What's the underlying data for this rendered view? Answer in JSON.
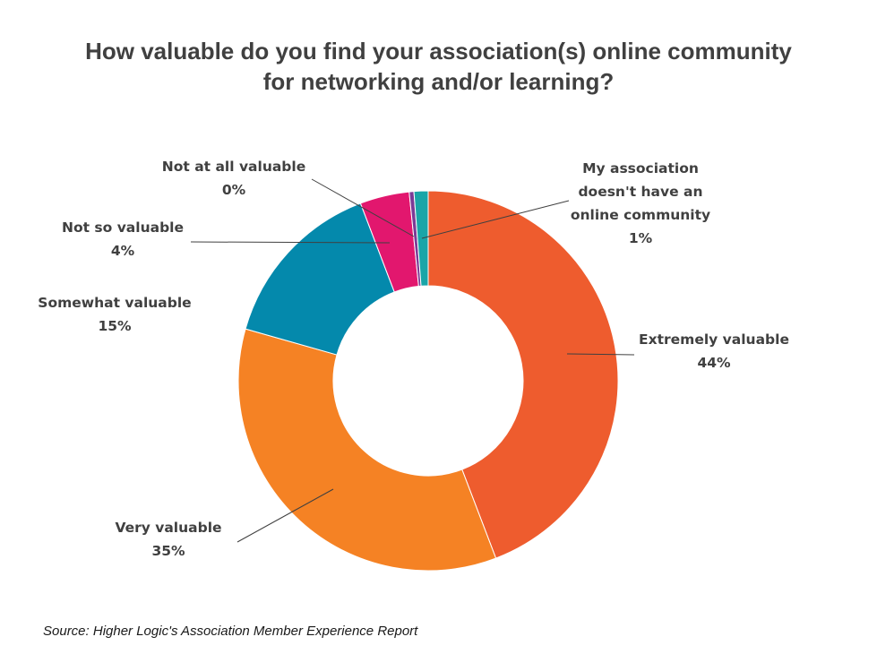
{
  "title_lines": [
    "How valuable do you find your association(s) online community",
    "for networking and/or learning?"
  ],
  "source": "Source: Higher Logic's Association Member Experience Report",
  "chart_data": {
    "type": "pie",
    "donut": true,
    "title": "How valuable do you find your association(s) online community for networking and/or learning?",
    "slices": [
      {
        "label_lines": [
          "Extremely valuable"
        ],
        "percent_label": "44%",
        "value": 44.2,
        "color": "#EE5C2E"
      },
      {
        "label_lines": [
          "Very valuable"
        ],
        "percent_label": "35%",
        "value": 35.2,
        "color": "#F58224"
      },
      {
        "label_lines": [
          "Somewhat valuable"
        ],
        "percent_label": "15%",
        "value": 14.8,
        "color": "#0489AC"
      },
      {
        "label_lines": [
          "Not so valuable"
        ],
        "percent_label": "4%",
        "value": 4.2,
        "color": "#E2176E"
      },
      {
        "label_lines": [
          "Not at all valuable"
        ],
        "percent_label": "0%",
        "value": 0.4,
        "color": "#7B3A96"
      },
      {
        "label_lines": [
          "My association",
          "doesn't have an",
          "online community"
        ],
        "percent_label": "1%",
        "value": 1.2,
        "color": "#1AA5A8"
      }
    ]
  }
}
